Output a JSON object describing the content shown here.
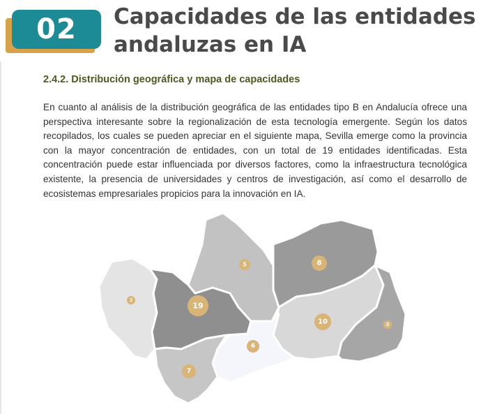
{
  "header": {
    "chapter_number": "02",
    "title": "Capacidades de las entidades andaluzas en IA",
    "accent_color": "#1d8b96",
    "shadow_color": "#d8a24a"
  },
  "section": {
    "heading": "2.4.2. Distribución geográfica y mapa de capacidades",
    "paragraph": "En cuanto al análisis de la distribución geográfica de las entidades tipo B en Andalucía ofrece una perspectiva interesante sobre la regionalización de esta tecnología emergente. Según los datos recopilados, los cuales se pueden apreciar en el siguiente mapa, Sevilla emerge como la provincia con la mayor concentración de entidades, con un total de 19 entidades identificadas. Esta concentración puede estar influenciada por diversos factores, como la infraestructura tecnológica existente, la presencia de universidades y centros de investigación, así como el desarrollo de ecosistemas empresariales propicios para la innovación en IA."
  },
  "map": {
    "marker_color": "#d8b577",
    "provinces": [
      {
        "id": "huelva",
        "count": "2",
        "fill": "#e4e4e4"
      },
      {
        "id": "sevilla",
        "count": "19",
        "fill": "#8f8f8f"
      },
      {
        "id": "cordoba",
        "count": "5",
        "fill": "#c2c2c2"
      },
      {
        "id": "jaen",
        "count": "8",
        "fill": "#9a9a9a"
      },
      {
        "id": "granada",
        "count": "10",
        "fill": "#d8d8d8"
      },
      {
        "id": "almeria",
        "count": "2",
        "fill": "#a6a6a6"
      },
      {
        "id": "malaga",
        "count": "6",
        "fill": "#f4f6fb"
      },
      {
        "id": "cadiz",
        "count": "7",
        "fill": "#c6c6c6"
      }
    ]
  }
}
